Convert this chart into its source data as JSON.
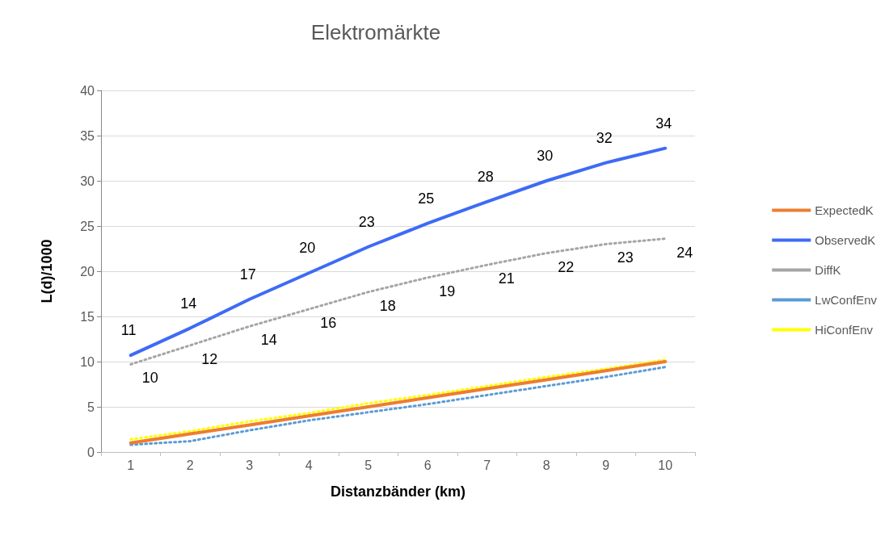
{
  "chart_data": {
    "type": "line",
    "title": "Elektromärkte",
    "xlabel": "Distanzbänder (km)",
    "ylabel": "L(d)/1000",
    "categories": [
      "1",
      "2",
      "3",
      "4",
      "5",
      "6",
      "7",
      "8",
      "9",
      "10"
    ],
    "ylim": [
      0,
      40
    ],
    "yticks": [
      0,
      5,
      10,
      15,
      20,
      25,
      30,
      35,
      40
    ],
    "grid": "y",
    "legend": "right",
    "marker": "none",
    "series": [
      {
        "name": "ExpectedK",
        "color": "#ed7d31",
        "line_style": "solid",
        "values": [
          1,
          2,
          3,
          4,
          5,
          6,
          7,
          8,
          9,
          10
        ]
      },
      {
        "name": "ObservedK",
        "color": "#3e6bf5",
        "line_style": "solid",
        "values": [
          10.7,
          13.7,
          16.9,
          19.8,
          22.7,
          25.3,
          27.7,
          30.0,
          32.0,
          33.6
        ],
        "value_labels": [
          "11",
          "14",
          "17",
          "20",
          "23",
          "25",
          "28",
          "30",
          "32",
          "34"
        ]
      },
      {
        "name": "DiffK",
        "color": "#a5a5a5",
        "line_style": "dotted",
        "values": [
          9.7,
          11.8,
          13.9,
          15.8,
          17.7,
          19.3,
          20.7,
          22.0,
          23.0,
          23.6
        ],
        "value_labels": [
          "10",
          "12",
          "14",
          "16",
          "18",
          "19",
          "21",
          "22",
          "23",
          "24"
        ]
      },
      {
        "name": "LwConfEnv",
        "color": "#5b9bd5",
        "line_style": "dotted",
        "values": [
          0.8,
          1.2,
          2.4,
          3.5,
          4.4,
          5.3,
          6.3,
          7.3,
          8.3,
          9.4
        ]
      },
      {
        "name": "HiConfEnv",
        "color": "#ffff00",
        "line_style": "dotted",
        "values": [
          1.4,
          2.3,
          3.4,
          4.3,
          5.4,
          6.3,
          7.3,
          8.3,
          9.2,
          10.2
        ]
      }
    ]
  }
}
